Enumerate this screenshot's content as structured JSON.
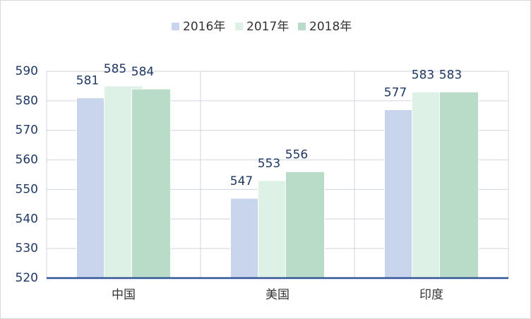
{
  "chart_data": {
    "type": "bar",
    "categories": [
      "中国",
      "美国",
      "印度"
    ],
    "series": [
      {
        "name": "2016年",
        "color": "#c9d5ec",
        "values": [
          581,
          547,
          577
        ]
      },
      {
        "name": "2017年",
        "color": "#ddf1e7",
        "values": [
          585,
          553,
          583
        ]
      },
      {
        "name": "2018年",
        "color": "#b9dcc9",
        "values": [
          584,
          556,
          583
        ]
      }
    ],
    "ylim": [
      520,
      590
    ],
    "yticks": [
      520,
      530,
      540,
      550,
      560,
      570,
      580,
      590
    ],
    "grid": true
  }
}
